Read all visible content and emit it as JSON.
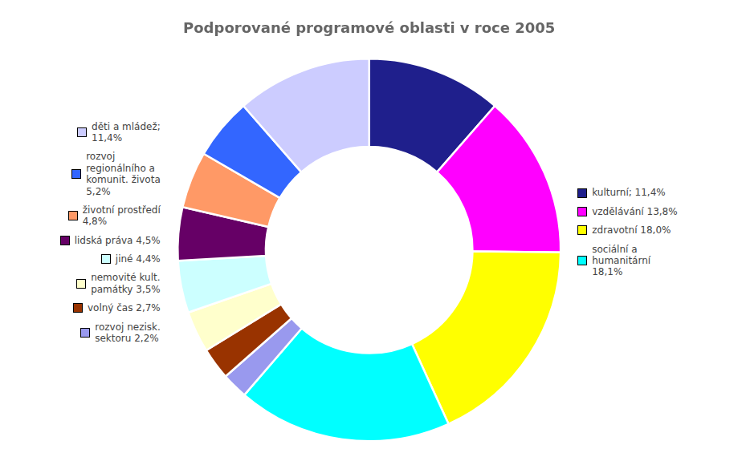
{
  "chart_data": {
    "type": "doughnut",
    "title": "Podporované programové oblasti v roce 2005",
    "categories": [
      "kulturní; 11,4%",
      "vzdělávání 13,8%",
      "zdravotní 18,0%",
      "sociální a\nhumanitární\n18,1%",
      "rozvoj nezisk.\nsektoru 2,2%",
      "volný čas 2,7%",
      "nemovité kult.\npamátky 3,5%",
      "jiné 4,4%",
      "lidská práva 4,5%",
      "životní prostředí\n4,8%",
      "rozvoj\nregionálního a\nkomunit. života\n5,2%",
      "děti a mládež;\n11,4%"
    ],
    "values": [
      11.4,
      13.8,
      18.0,
      18.1,
      2.2,
      2.7,
      3.5,
      4.4,
      4.5,
      4.8,
      5.2,
      11.4
    ],
    "colors": [
      "#1F1F8C",
      "#FF00FF",
      "#FFFF00",
      "#00FFFF",
      "#9999EE",
      "#993300",
      "#FFFFCC",
      "#CCFFFF",
      "#660066",
      "#FF9966",
      "#3366FF",
      "#CCCCFF"
    ],
    "legend": "sides"
  }
}
